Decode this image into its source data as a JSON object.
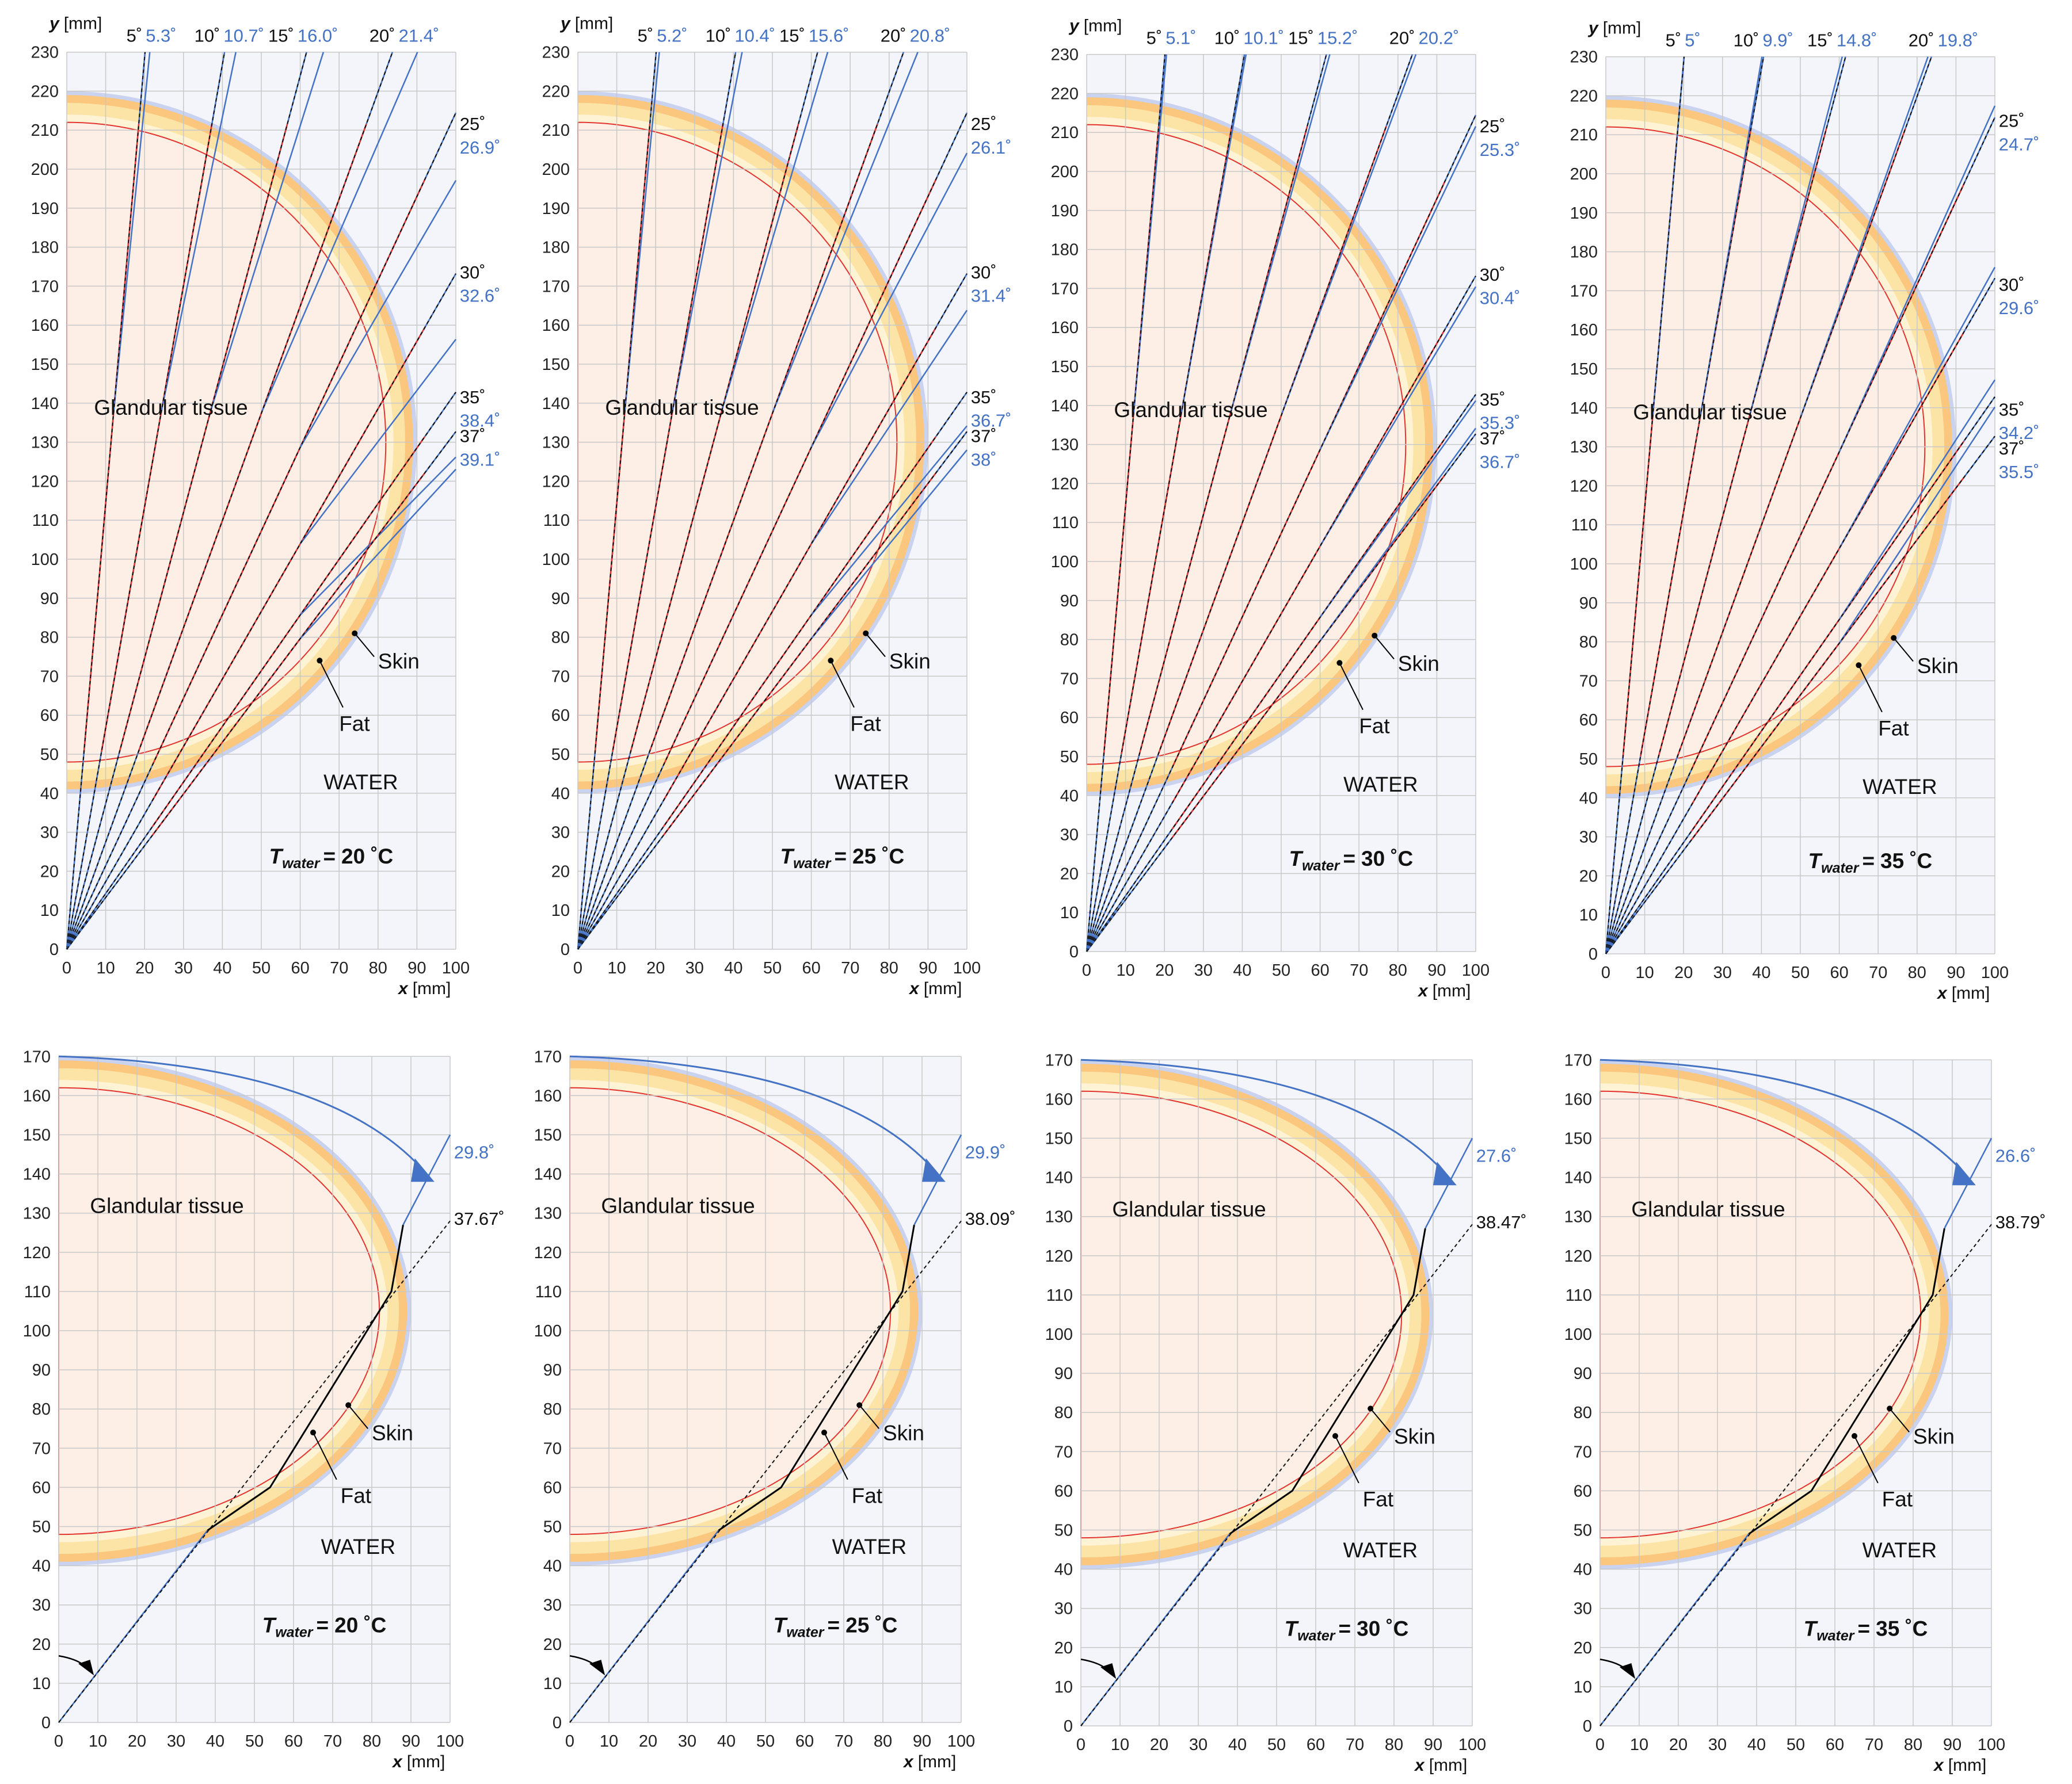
{
  "units": {
    "x_label": "x",
    "x_unit": "[mm]",
    "y_label": "y",
    "y_unit": "[mm]"
  },
  "labels": {
    "glandular": "Glandular tissue",
    "skin": "Skin",
    "fat": "Fat",
    "water": "WATER",
    "t_sym": "T",
    "t_sub": "water"
  },
  "colors": {
    "glandular": "#fdeee6",
    "fat_band": "#fce4a6",
    "skin_band": "#fbc67d",
    "background": "#f3f5fa",
    "grid": "#c8c8c8",
    "ray_in_tissue": "#e3342f",
    "ray_in_water": "#4472c4",
    "reference_line": "#111111",
    "angle_label_black": "#111111",
    "angle_label_blue": "#4472c4"
  },
  "ticks": {
    "x_top": [
      0,
      10,
      20,
      30,
      40,
      50,
      60,
      70,
      80,
      90,
      100
    ],
    "y_top": [
      0,
      10,
      20,
      30,
      40,
      50,
      60,
      70,
      80,
      90,
      100,
      110,
      120,
      130,
      140,
      150,
      160,
      170,
      180,
      190,
      200,
      210,
      220,
      230
    ],
    "x_bottom": [
      0,
      10,
      20,
      30,
      40,
      50,
      60,
      70,
      80,
      90,
      100
    ],
    "y_bottom": [
      0,
      10,
      20,
      30,
      40,
      50,
      60,
      70,
      80,
      90,
      100,
      110,
      120,
      130,
      140,
      150,
      160,
      170
    ]
  },
  "top_panels": [
    {
      "temperature": "20",
      "unit": "˚C",
      "top_angles": [
        {
          "black": "5˚",
          "blue": "5.3˚"
        },
        {
          "black": "10˚",
          "blue": "10.7˚"
        },
        {
          "black": "15˚",
          "blue": "16.0˚"
        },
        {
          "black": "20˚",
          "blue": "21.4˚"
        }
      ],
      "side_angles": [
        {
          "black": "25˚",
          "blue": "26.9˚"
        },
        {
          "black": "30˚",
          "blue": "32.6˚"
        },
        {
          "black": "35˚",
          "blue": "38.4˚"
        },
        {
          "black": "37˚",
          "blue": "39.1˚"
        }
      ]
    },
    {
      "temperature": "25",
      "unit": "˚C",
      "top_angles": [
        {
          "black": "5˚",
          "blue": "5.2˚"
        },
        {
          "black": "10˚",
          "blue": "10.4˚"
        },
        {
          "black": "15˚",
          "blue": "15.6˚"
        },
        {
          "black": "20˚",
          "blue": "20.8˚"
        }
      ],
      "side_angles": [
        {
          "black": "25˚",
          "blue": "26.1˚"
        },
        {
          "black": "30˚",
          "blue": "31.4˚"
        },
        {
          "black": "35˚",
          "blue": "36.7˚"
        },
        {
          "black": "37˚",
          "blue": "38˚"
        }
      ]
    },
    {
      "temperature": "30",
      "unit": "˚C",
      "top_angles": [
        {
          "black": "5˚",
          "blue": "5.1˚"
        },
        {
          "black": "10˚",
          "blue": "10.1˚"
        },
        {
          "black": "15˚",
          "blue": "15.2˚"
        },
        {
          "black": "20˚",
          "blue": "20.2˚"
        }
      ],
      "side_angles": [
        {
          "black": "25˚",
          "blue": "25.3˚"
        },
        {
          "black": "30˚",
          "blue": "30.4˚"
        },
        {
          "black": "35˚",
          "blue": "35.3˚"
        },
        {
          "black": "37˚",
          "blue": "36.7˚"
        }
      ]
    },
    {
      "temperature": "35",
      "unit": "˚C",
      "top_angles": [
        {
          "black": "5˚",
          "blue": "5˚"
        },
        {
          "black": "10˚",
          "blue": "9.9˚"
        },
        {
          "black": "15˚",
          "blue": "14.8˚"
        },
        {
          "black": "20˚",
          "blue": "19.8˚"
        }
      ],
      "side_angles": [
        {
          "black": "25˚",
          "blue": "24.7˚"
        },
        {
          "black": "30˚",
          "blue": "29.6˚"
        },
        {
          "black": "35˚",
          "blue": "34.2˚"
        },
        {
          "black": "37˚",
          "blue": "35.5˚"
        }
      ]
    }
  ],
  "bottom_panels": [
    {
      "temperature": "20",
      "unit": "˚C",
      "blue_angle": "29.8˚",
      "black_angle": "37.67˚"
    },
    {
      "temperature": "25",
      "unit": "˚C",
      "blue_angle": "29.9˚",
      "black_angle": "38.09˚"
    },
    {
      "temperature": "30",
      "unit": "˚C",
      "blue_angle": "27.6˚",
      "black_angle": "38.47˚"
    },
    {
      "temperature": "35",
      "unit": "˚C",
      "blue_angle": "26.6˚",
      "black_angle": "38.79˚"
    }
  ]
}
